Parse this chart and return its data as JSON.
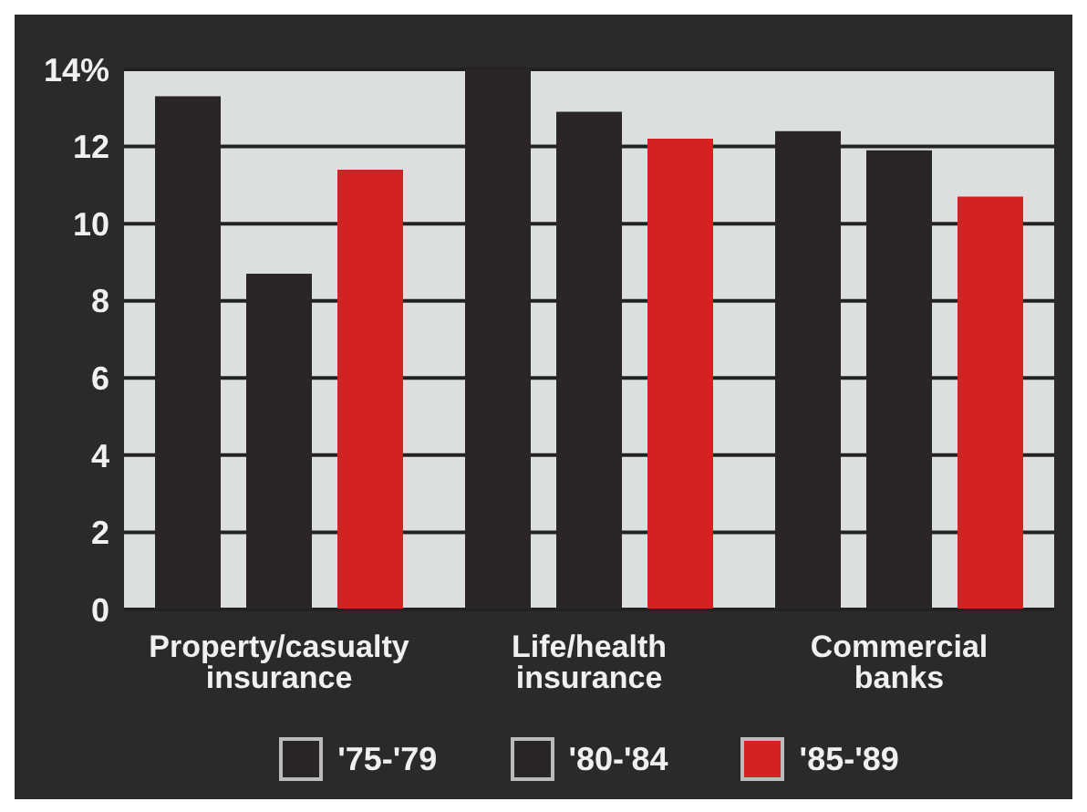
{
  "chart_data": {
    "type": "bar",
    "categories": [
      "Property/casualty insurance",
      "Life/health insurance",
      "Commercial banks"
    ],
    "series": [
      {
        "name": "'75-'79",
        "color": "#2a2626",
        "values": [
          13.3,
          14.0,
          12.4
        ]
      },
      {
        "name": "'80-'84",
        "color": "#2a2626",
        "values": [
          8.7,
          12.9,
          11.9
        ]
      },
      {
        "name": "'85-'89",
        "color": "#d42222",
        "values": [
          11.4,
          12.2,
          10.7
        ]
      }
    ],
    "ylim": [
      0,
      14
    ],
    "yticks": [
      0,
      2,
      4,
      6,
      8,
      10,
      12,
      {
        "value": 14,
        "label": "14%"
      }
    ],
    "grid": "y",
    "legend": "bottom"
  }
}
